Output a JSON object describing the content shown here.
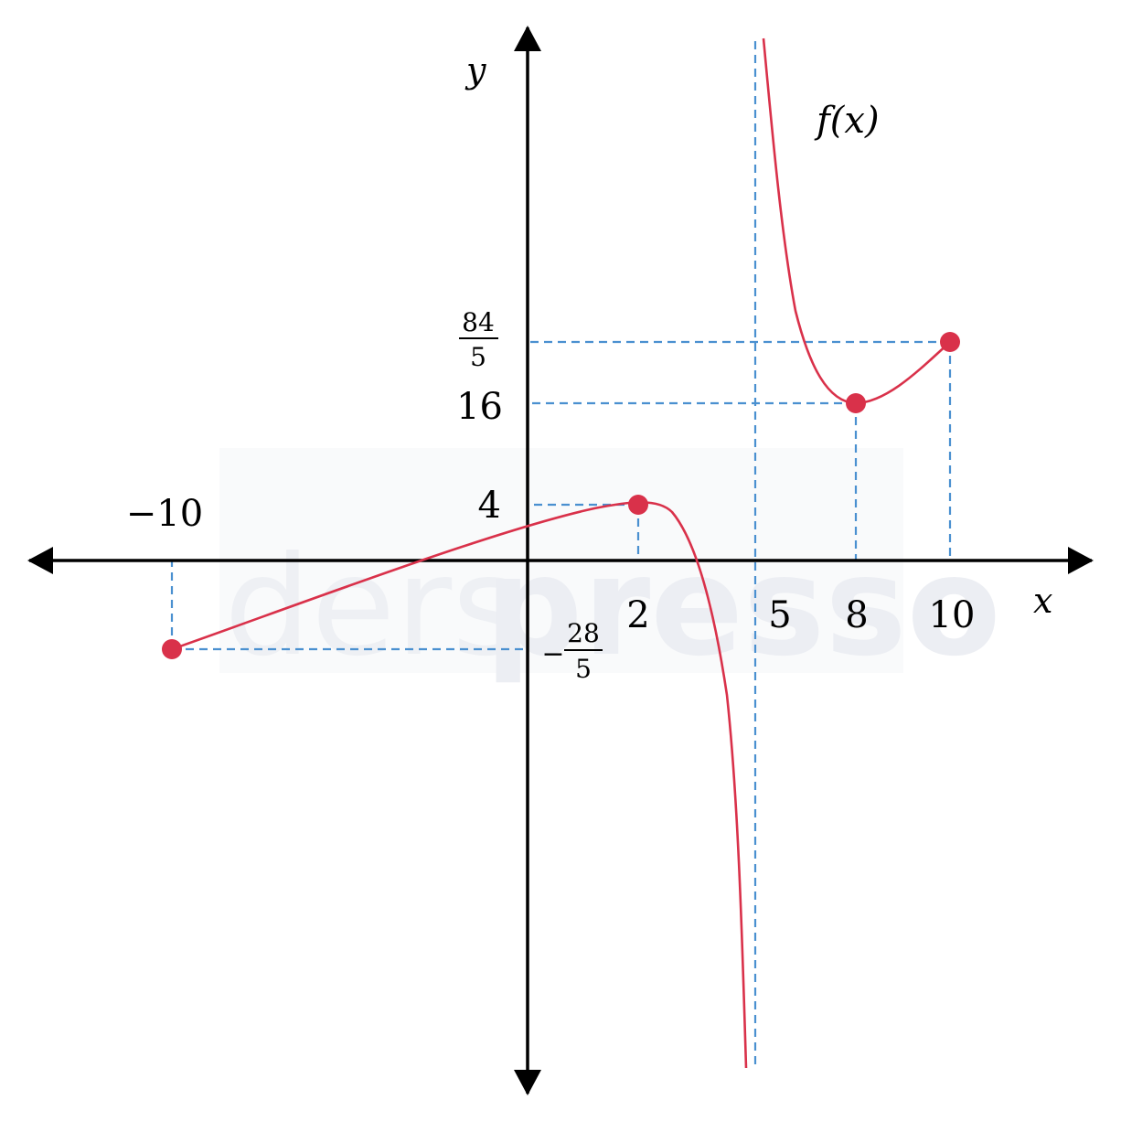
{
  "watermark": {
    "light": "ders",
    "bold": "presso"
  },
  "function_label": "f(x)",
  "axes": {
    "x_label": "x",
    "y_label": "y"
  },
  "x_ticks": [
    {
      "id": "neg10",
      "text": "−10"
    },
    {
      "id": "two",
      "text": "2"
    },
    {
      "id": "five",
      "text": "5"
    },
    {
      "id": "eight",
      "text": "8"
    },
    {
      "id": "ten",
      "text": "10"
    }
  ],
  "y_ticks": {
    "four": "4",
    "sixteen": "16",
    "f84_5": {
      "num": "84",
      "den": "5"
    },
    "neg28_5": {
      "sign": "−",
      "num": "28",
      "den": "5"
    }
  },
  "colors": {
    "curve": "#d9314a",
    "guide": "#4a90d0",
    "axis": "#000000"
  },
  "chart_data": {
    "type": "line",
    "vertical_asymptote": 5,
    "points": [
      {
        "x": -10,
        "y": -5.6,
        "label": "−28/5"
      },
      {
        "x": 2,
        "y": 4
      },
      {
        "x": 8,
        "y": 16
      },
      {
        "x": 10,
        "y": 16.8,
        "label": "84/5"
      }
    ]
  }
}
